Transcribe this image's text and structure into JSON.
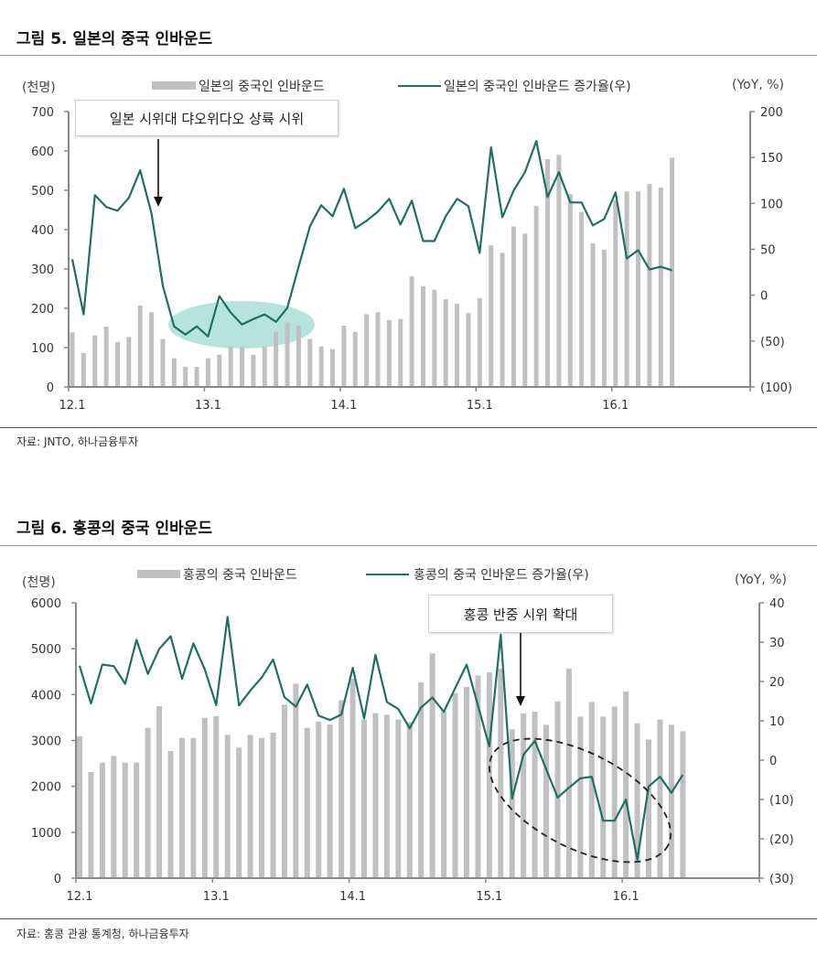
{
  "figure5": {
    "title": "그림 5. 일본의 중국 인바운드",
    "source": "자료: JNTO, 하나금융투자"
  },
  "figure6": {
    "title": "그림 6. 홍콩의 중국 인바운드",
    "source": "자료: 홍콩 관광 통계청, 하나금융투자"
  },
  "chart_data": [
    {
      "type": "bar+line",
      "title": "그림 5. 일본의 중국 인바운드",
      "left_unit": "(천명)",
      "right_unit": "(YoY, %)",
      "categories": [
        "12.1",
        "12.2",
        "12.3",
        "12.4",
        "12.5",
        "12.6",
        "12.7",
        "12.8",
        "12.9",
        "12.10",
        "12.11",
        "12.12",
        "13.1",
        "13.2",
        "13.3",
        "13.4",
        "13.5",
        "13.6",
        "13.7",
        "13.8",
        "13.9",
        "13.10",
        "13.11",
        "13.12",
        "14.1",
        "14.2",
        "14.3",
        "14.4",
        "14.5",
        "14.6",
        "14.7",
        "14.8",
        "14.9",
        "14.10",
        "14.11",
        "14.12",
        "15.1",
        "15.2",
        "15.3",
        "15.4",
        "15.5",
        "15.6",
        "15.7",
        "15.8",
        "15.9",
        "15.10",
        "15.11",
        "15.12",
        "16.1",
        "16.2",
        "16.3",
        "16.4",
        "16.5",
        "16.6"
      ],
      "x_tick_labels": [
        "12.1",
        "13.1",
        "14.1",
        "15.1",
        "16.1"
      ],
      "y_left": {
        "min": 0,
        "max": 700,
        "ticks": [
          "0",
          "100",
          "200",
          "300",
          "400",
          "500",
          "600",
          "700"
        ]
      },
      "y_right": {
        "min": -100,
        "max": 200,
        "ticks": [
          "(100)",
          "(50)",
          "0",
          "50",
          "100",
          "150",
          "200"
        ]
      },
      "series": [
        {
          "name": "일본의 중국인 인바운드",
          "kind": "bar",
          "axis": "left",
          "color": "#c0c0c0",
          "values": [
            139,
            86,
            131,
            153,
            114,
            127,
            207,
            190,
            122,
            73,
            51,
            51,
            73,
            82,
            103,
            103,
            82,
            103,
            140,
            164,
            156,
            122,
            103,
            96,
            156,
            140,
            185,
            190,
            170,
            173,
            281,
            256,
            247,
            223,
            212,
            188,
            226,
            360,
            341,
            408,
            390,
            460,
            579,
            590,
            490,
            445,
            365,
            349,
            475,
            497,
            497,
            516,
            507,
            583
          ]
        },
        {
          "name": "일본의 중국인 인바운드 증가율(우)",
          "kind": "line",
          "axis": "right",
          "color": "#1f6f63",
          "values": [
            39,
            -21,
            109,
            96,
            92,
            106,
            136,
            89,
            10,
            -34,
            -43,
            -34,
            -45,
            -1,
            -19,
            -32,
            -26,
            -21,
            -29,
            -14,
            31,
            75,
            98,
            86,
            116,
            73,
            81,
            91,
            105,
            77,
            103,
            59,
            59,
            86,
            105,
            97,
            46,
            161,
            85,
            114,
            134,
            168,
            107,
            134,
            101,
            101,
            76,
            83,
            112,
            40,
            49,
            28,
            31,
            27
          ]
        }
      ],
      "annotation": {
        "text": "일본 시위대 댜오위다오 상륙 시위",
        "highlight": "ellipse",
        "highlight_color": "#aee0d8"
      },
      "legend": "top"
    },
    {
      "type": "bar+line",
      "title": "그림 6. 홍콩의 중국 인바운드",
      "left_unit": "(천명)",
      "right_unit": "(YoY, %)",
      "categories": [
        "12.1",
        "12.2",
        "12.3",
        "12.4",
        "12.5",
        "12.6",
        "12.7",
        "12.8",
        "12.9",
        "12.10",
        "12.11",
        "12.12",
        "13.1",
        "13.2",
        "13.3",
        "13.4",
        "13.5",
        "13.6",
        "13.7",
        "13.8",
        "13.9",
        "13.10",
        "13.11",
        "13.12",
        "14.1",
        "14.2",
        "14.3",
        "14.4",
        "14.5",
        "14.6",
        "14.7",
        "14.8",
        "14.9",
        "14.10",
        "14.11",
        "14.12",
        "15.1",
        "15.2",
        "15.3",
        "15.4",
        "15.5",
        "15.6",
        "15.7",
        "15.8",
        "15.9",
        "15.10",
        "15.11",
        "15.12",
        "16.1",
        "16.2",
        "16.3",
        "16.4",
        "16.5",
        "16.6"
      ],
      "x_tick_labels": [
        "12.1",
        "13.1",
        "14.1",
        "15.1",
        "16.1"
      ],
      "y_left": {
        "min": 0,
        "max": 6000,
        "ticks": [
          "0",
          "1000",
          "2000",
          "3000",
          "4000",
          "5000",
          "6000"
        ]
      },
      "y_right": {
        "min": -30,
        "max": 40,
        "ticks": [
          "(30)",
          "(20)",
          "(10)",
          "0",
          "10",
          "20",
          "30",
          "40"
        ]
      },
      "series": [
        {
          "name": "홍콩의 중국 인바운드",
          "kind": "bar",
          "axis": "left",
          "color": "#c0c0c0",
          "values": [
            3090,
            2312,
            2518,
            2664,
            2518,
            2518,
            3276,
            3747,
            2771,
            3056,
            3056,
            3495,
            3528,
            3123,
            2844,
            3123,
            3056,
            3169,
            3780,
            4239,
            3276,
            3415,
            3349,
            3880,
            4345,
            3455,
            3594,
            3561,
            3455,
            3401,
            4266,
            4897,
            3635,
            4033,
            4166,
            4418,
            4485,
            4565,
            3242,
            3588,
            3628,
            3342,
            3853,
            4565,
            3521,
            3840,
            3521,
            3741,
            4066,
            3375,
            3023,
            3455,
            3342,
            3202
          ]
        },
        {
          "name": "홍콩의 중국 인바운드 증가율(우)",
          "kind": "line",
          "axis": "right",
          "color": "#1f6f63",
          "values": [
            24.0,
            14.4,
            24.3,
            23.9,
            19.4,
            30.6,
            21.9,
            28.3,
            31.5,
            20.7,
            29.7,
            23.1,
            14.0,
            36.4,
            13.9,
            17.7,
            21.0,
            25.6,
            16.0,
            13.6,
            19.2,
            11.3,
            10.2,
            11.6,
            23.5,
            10.6,
            26.8,
            14.8,
            13.0,
            8.1,
            13.4,
            15.9,
            12.3,
            18.3,
            24.3,
            13.9,
            3.5,
            31.9,
            -9.8,
            1.4,
            4.9,
            -2.3,
            -9.5,
            -7.0,
            -4.6,
            -4.2,
            -15.4,
            -15.4,
            -10.0,
            -25.3,
            -6.7,
            -4.2,
            -8.3,
            -3.7
          ]
        }
      ],
      "annotation": {
        "text": "홍콩 반중 시위 확대",
        "highlight": "dashed-ellipse"
      },
      "legend": "top"
    }
  ]
}
